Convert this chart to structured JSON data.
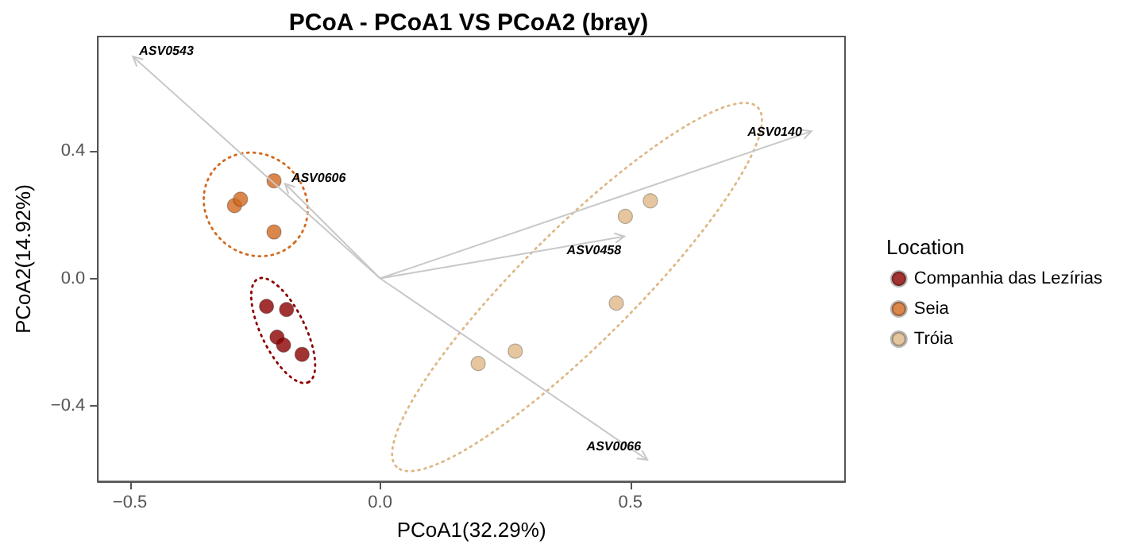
{
  "chart_data": {
    "type": "scatter",
    "title": "PCoA - PCoA1 VS PCoA2 (bray)",
    "xlabel": "PCoA1(32.29%)",
    "ylabel": "PCoA2(14.92%)",
    "legend_title": "Location",
    "legend": "right",
    "grid": false,
    "marker": "circle",
    "xlim": [
      -0.564,
      0.929
    ],
    "ylim": [
      -0.639,
      0.761
    ],
    "xticks": [
      {
        "value": -0.5,
        "label": "−0.5"
      },
      {
        "value": 0,
        "label": "0.0"
      },
      {
        "value": 0.5,
        "label": "0.5"
      }
    ],
    "yticks": [
      {
        "value": -0.4,
        "label": "−0.4"
      },
      {
        "value": 0,
        "label": "0.0"
      },
      {
        "value": 0.4,
        "label": "0.4"
      }
    ],
    "annotations": [
      "ASV0543",
      "ASV0606",
      "ASV0140",
      "ASV0458",
      "ASV0066"
    ],
    "series": [
      {
        "name": "Companhia das Lezírias",
        "color": "#8b0000",
        "x": [
          -0.227,
          -0.187,
          -0.206,
          -0.193,
          -0.156
        ],
        "values": [
          -0.088,
          -0.098,
          -0.185,
          -0.21,
          -0.239
        ]
      },
      {
        "name": "Seia",
        "color": "#d2691e",
        "x": [
          -0.212,
          -0.291,
          -0.279,
          -0.212
        ],
        "values": [
          0.307,
          0.229,
          0.249,
          0.146
        ]
      },
      {
        "name": "Tróia",
        "color": "#deb887",
        "x": [
          0.49,
          0.54,
          0.472,
          0.196,
          0.27
        ],
        "values": [
          0.195,
          0.244,
          -0.078,
          -0.268,
          -0.229
        ]
      }
    ]
  }
}
